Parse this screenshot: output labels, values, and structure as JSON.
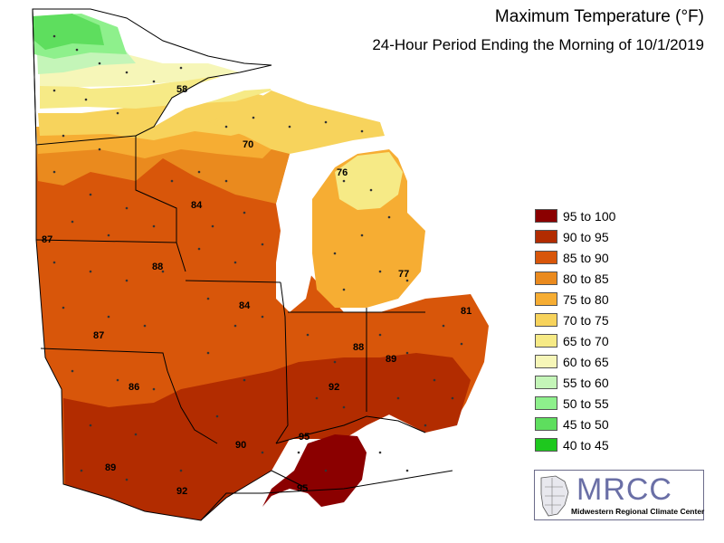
{
  "title": "Maximum Temperature (°F)",
  "subtitle": "24-Hour Period Ending the Morning of 10/1/2019",
  "legend": [
    {
      "label": "95 to 100",
      "color": "#8b0000"
    },
    {
      "label": "90 to 95",
      "color": "#b22c00"
    },
    {
      "label": "85 to 90",
      "color": "#d8560a"
    },
    {
      "label": "80 to 85",
      "color": "#ea8a1e"
    },
    {
      "label": "75 to 80",
      "color": "#f6ad33"
    },
    {
      "label": "70 to 75",
      "color": "#f7d35c"
    },
    {
      "label": "65 to 70",
      "color": "#f6ea86"
    },
    {
      "label": "60 to 65",
      "color": "#f6f6b8"
    },
    {
      "label": "55 to 60",
      "color": "#c4f5b8"
    },
    {
      "label": "50 to 55",
      "color": "#8ef08c"
    },
    {
      "label": "45 to 50",
      "color": "#5ede5e"
    },
    {
      "label": "40 to 45",
      "color": "#1ec81e"
    }
  ],
  "map_labels": [
    "58",
    "70",
    "76",
    "84",
    "87",
    "88",
    "77",
    "84",
    "81",
    "87",
    "88",
    "89",
    "86",
    "92",
    "90",
    "95",
    "89",
    "92",
    "95"
  ],
  "logo": {
    "name": "MRCC",
    "subtitle": "Midwestern Regional Climate Center"
  }
}
